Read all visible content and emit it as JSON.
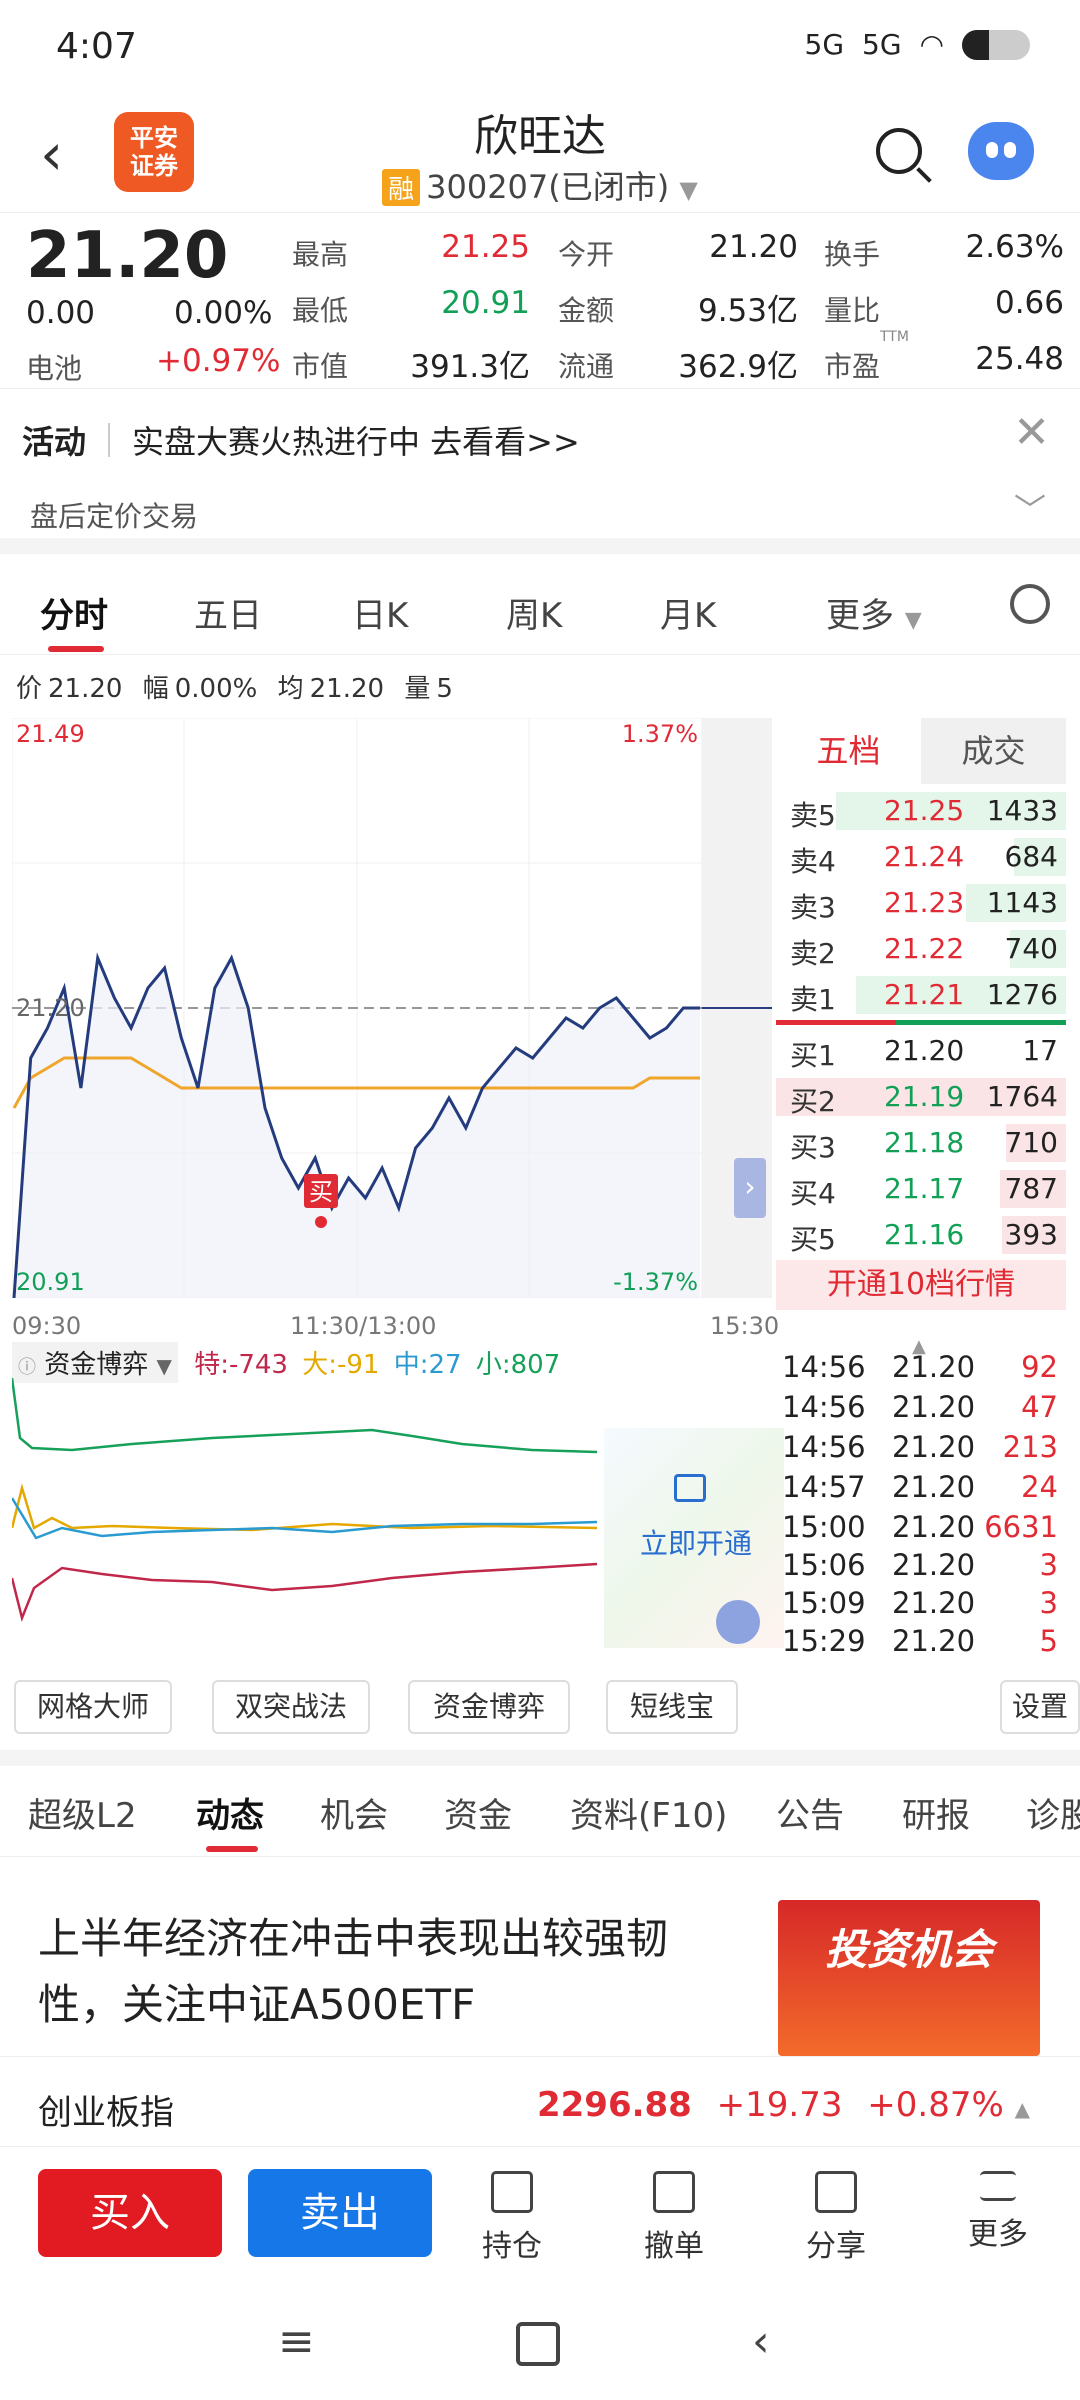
{
  "status": {
    "time": "4:07",
    "net1": "5G",
    "net2": "5G"
  },
  "header": {
    "logo_line1": "平安",
    "logo_line2": "证券",
    "title": "欣旺达",
    "tag": "融",
    "code": "300207",
    "status": "(已闭市)"
  },
  "quote": {
    "price": "21.20",
    "change": "0.00",
    "change_pct": "0.00%",
    "sector_label": "电池",
    "sector_pct": "+0.97%",
    "fields": [
      {
        "label": "最高",
        "value": "21.25"
      },
      {
        "label": "今开",
        "value": "21.20"
      },
      {
        "label": "换手",
        "value": "2.63%"
      },
      {
        "label": "最低",
        "value": "20.91"
      },
      {
        "label": "金额",
        "value": "9.53亿"
      },
      {
        "label": "量比",
        "value": "0.66"
      },
      {
        "label": "市值",
        "value": "391.3亿"
      },
      {
        "label": "流通",
        "value": "362.9亿"
      },
      {
        "label": "市盈",
        "value": "25.48"
      }
    ],
    "pe_sup": "TTM"
  },
  "activity": {
    "label": "活动",
    "text": "实盘大赛火热进行中 去看看>>",
    "after_hours": "盘后定价交易"
  },
  "tabs": [
    "分时",
    "五日",
    "日K",
    "周K",
    "月K",
    "更多"
  ],
  "info_line": {
    "price_label": "价",
    "price": "21.20",
    "range_label": "幅",
    "range": "0.00%",
    "avg_label": "均",
    "avg": "21.20",
    "vol_label": "量",
    "vol": "5"
  },
  "chart_data": {
    "type": "line",
    "y_top": "21.49",
    "y_bottom": "20.91",
    "y_mid": "21.20",
    "pct_top": "1.37%",
    "pct_bottom": "-1.37%",
    "ylim": [
      20.91,
      21.49
    ],
    "x_labels": [
      "09:30",
      "11:30/13:00",
      "15:30"
    ],
    "series": [
      {
        "values": [
          20.91,
          21.15,
          21.18,
          21.22,
          21.12,
          21.25,
          21.21,
          21.18,
          21.22,
          21.24,
          21.17,
          21.12,
          21.22,
          21.25,
          21.2,
          21.1,
          21.05,
          21.02,
          21.05,
          21.0,
          21.03,
          21.01,
          21.04,
          21.0,
          21.06,
          21.08,
          21.11,
          21.08,
          21.12,
          21.14,
          21.16,
          21.15,
          21.17,
          21.19,
          21.18,
          21.2,
          21.21,
          21.19,
          21.17,
          21.18,
          21.2,
          21.2
        ]
      },
      {
        "values": [
          21.1,
          21.13,
          21.14,
          21.15,
          21.15,
          21.15,
          21.15,
          21.15,
          21.14,
          21.13,
          21.12,
          21.12,
          21.12,
          21.12,
          21.12,
          21.12,
          21.12,
          21.12,
          21.12,
          21.12,
          21.12,
          21.12,
          21.12,
          21.12,
          21.12,
          21.12,
          21.12,
          21.12,
          21.12,
          21.12,
          21.12,
          21.12,
          21.12,
          21.12,
          21.12,
          21.12,
          21.12,
          21.12,
          21.13,
          21.13,
          21.13,
          21.13
        ]
      }
    ],
    "marker": "买"
  },
  "order_book": {
    "tabs": [
      "五档",
      "成交"
    ],
    "asks": [
      {
        "label": "卖5",
        "price": "21.25",
        "vol": "1433"
      },
      {
        "label": "卖4",
        "price": "21.24",
        "vol": "684"
      },
      {
        "label": "卖3",
        "price": "21.23",
        "vol": "1143"
      },
      {
        "label": "卖2",
        "price": "21.22",
        "vol": "740"
      },
      {
        "label": "卖1",
        "price": "21.21",
        "vol": "1276"
      }
    ],
    "bids": [
      {
        "label": "买1",
        "price": "21.20",
        "vol": "17"
      },
      {
        "label": "买2",
        "price": "21.19",
        "vol": "1764"
      },
      {
        "label": "买3",
        "price": "21.18",
        "vol": "710"
      },
      {
        "label": "买4",
        "price": "21.17",
        "vol": "787"
      },
      {
        "label": "买5",
        "price": "21.16",
        "vol": "393"
      }
    ],
    "open_text": "开通10档行情"
  },
  "funds": {
    "label": "资金博弈",
    "te": "特:-743",
    "da": "大:-91",
    "zhong": "中:27",
    "xiao": "小:807",
    "lock_text": "立即开通"
  },
  "trades": [
    {
      "time": "14:56",
      "price": "21.20",
      "vol": "92"
    },
    {
      "time": "14:56",
      "price": "21.20",
      "vol": "47"
    },
    {
      "time": "14:56",
      "price": "21.20",
      "vol": "213"
    },
    {
      "time": "14:57",
      "price": "21.20",
      "vol": "24"
    },
    {
      "time": "15:00",
      "price": "21.20",
      "vol": "6631"
    },
    {
      "time": "15:06",
      "price": "21.20",
      "vol": "3"
    },
    {
      "time": "15:09",
      "price": "21.20",
      "vol": "3"
    },
    {
      "time": "15:29",
      "price": "21.20",
      "vol": "5"
    }
  ],
  "tools": [
    "网格大师",
    "双突战法",
    "资金博弈",
    "短线宝",
    "设置"
  ],
  "news_tabs": [
    "超级L2",
    "动态",
    "机会",
    "资金",
    "资料(F10)",
    "公告",
    "研报",
    "诊股"
  ],
  "news": {
    "headline": "上半年经济在冲击中表现出较强韧性，关注中证A500ETF",
    "image_text": "投资机会"
  },
  "index": {
    "name": "创业板指",
    "value": "2296.88",
    "change": "+19.73",
    "pct": "+0.87%"
  },
  "bottom": {
    "buy": "买入",
    "sell": "卖出",
    "actions": [
      "持仓",
      "撤单",
      "分享",
      "更多"
    ]
  }
}
